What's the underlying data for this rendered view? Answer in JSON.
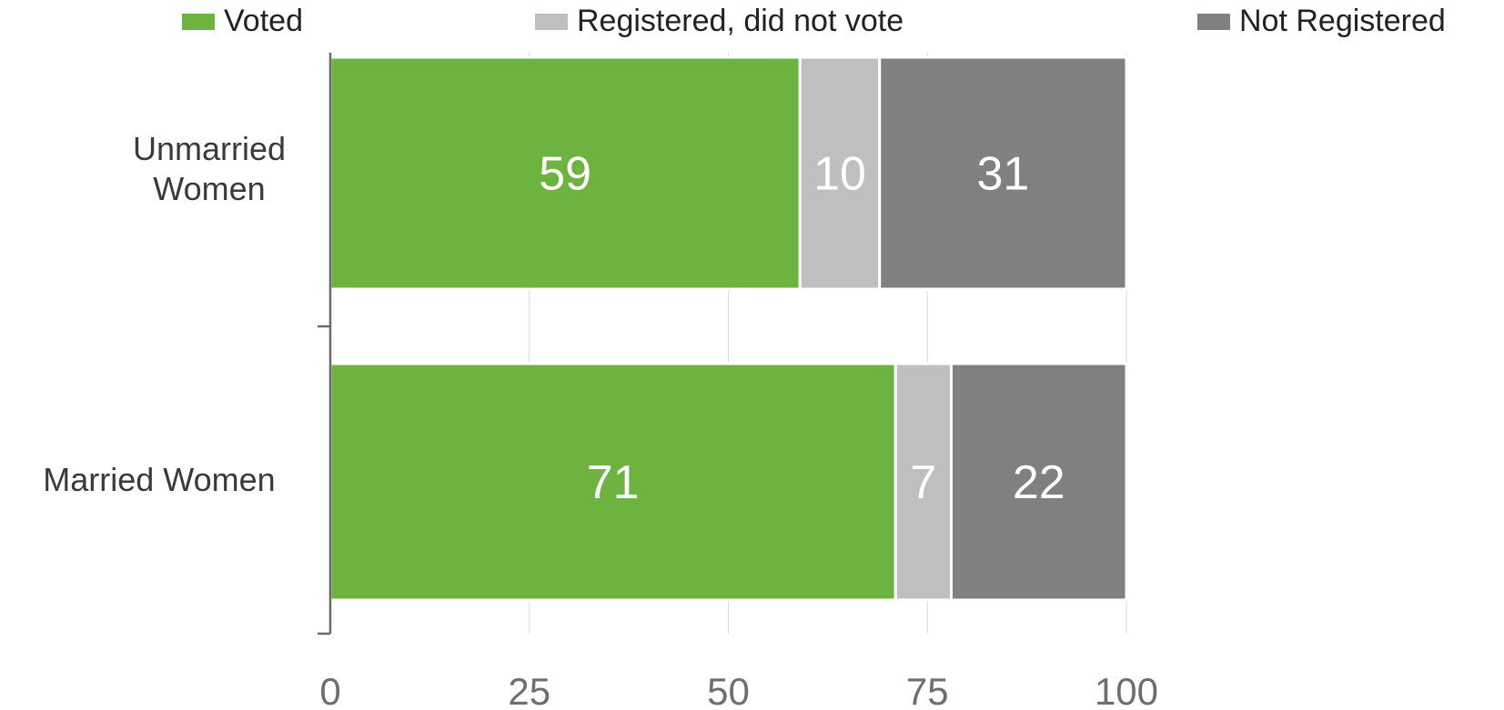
{
  "chart_data": {
    "type": "bar",
    "orientation": "horizontal",
    "stacked": true,
    "categories": [
      "Unmarried Women",
      "Married Women"
    ],
    "category_labels": [
      [
        "Unmarried",
        "Women"
      ],
      [
        "Married Women"
      ]
    ],
    "series": [
      {
        "name": "Voted",
        "values": [
          59,
          71
        ],
        "color": "#6db33f"
      },
      {
        "name": "Registered, did not vote",
        "values": [
          10,
          7
        ],
        "color": "#bfbfbf"
      },
      {
        "name": "Not Registered",
        "values": [
          31,
          22
        ],
        "color": "#808080"
      }
    ],
    "xlim": [
      0,
      100
    ],
    "xticks": [
      0,
      25,
      50,
      75,
      100
    ],
    "tick_labels": [
      "0",
      "25",
      "50",
      "75",
      "100"
    ],
    "grid": true,
    "legend_position": "top"
  }
}
